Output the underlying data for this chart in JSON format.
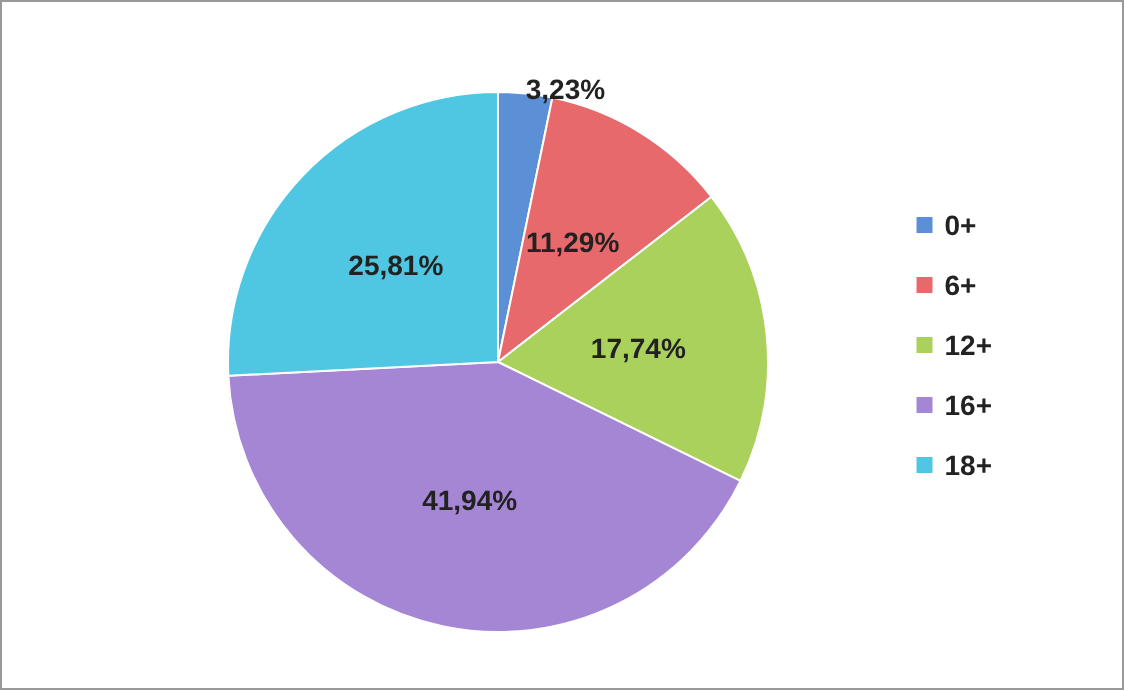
{
  "chart_data": {
    "type": "pie",
    "categories": [
      "0+",
      "6+",
      "12+",
      "16+",
      "18+"
    ],
    "values": [
      3.23,
      11.29,
      17.74,
      41.94,
      25.81
    ],
    "value_labels": [
      "3,23%",
      "11,29%",
      "17,74%",
      "41,94%",
      "25,81%"
    ],
    "colors": [
      "#5b8fd6",
      "#e8696b",
      "#a9d15b",
      "#a486d4",
      "#4fc6e2"
    ],
    "legend": "right"
  }
}
